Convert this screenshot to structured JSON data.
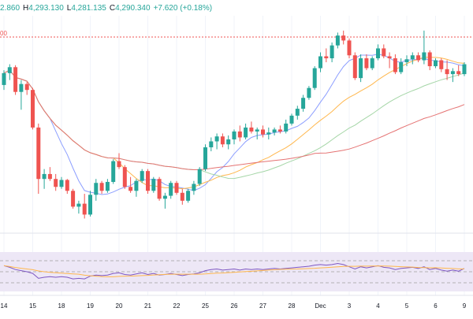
{
  "header": {
    "open_label": "",
    "open_value": "2.860",
    "high_label": "H",
    "high_value": "4,293.130",
    "low_label": "L",
    "low_value": "4,281.135",
    "close_label": "C",
    "close_value": "4,290.340",
    "change": "+7.620 (+0.18%)",
    "color": "#26a69a"
  },
  "ref_line_label": "00",
  "colors": {
    "up": "#26a69a",
    "down": "#ef5350",
    "ma_blue": "#8c9eff",
    "ma_orange": "#ffb74d",
    "ma_green": "#a5d6a7",
    "ma_red": "#e57373",
    "rsi_line": "#7e57c2",
    "rsi_signal": "#ffb74d",
    "rsi_band": "#ede7f6",
    "ref_line": "#ef5350",
    "axis_text": "#131722"
  },
  "chart_data": {
    "type": "candlestick",
    "x_tick_labels": [
      "14",
      "15",
      "18",
      "19",
      "20",
      "21",
      "22",
      "25",
      "26",
      "27",
      "28",
      "Dec",
      "3",
      "4",
      "5",
      "6",
      "9"
    ],
    "candles": [
      [
        4235,
        4250,
        4230,
        4247
      ],
      [
        4247,
        4256,
        4240,
        4253
      ],
      [
        4253,
        4255,
        4225,
        4228
      ],
      [
        4228,
        4240,
        4210,
        4236
      ],
      [
        4236,
        4238,
        4225,
        4230
      ],
      [
        4230,
        4232,
        4190,
        4192
      ],
      [
        4192,
        4196,
        4125,
        4140
      ],
      [
        4140,
        4150,
        4130,
        4145
      ],
      [
        4145,
        4152,
        4138,
        4140
      ],
      [
        4140,
        4145,
        4128,
        4132
      ],
      [
        4132,
        4142,
        4130,
        4139
      ],
      [
        4139,
        4140,
        4125,
        4128
      ],
      [
        4128,
        4130,
        4110,
        4112
      ],
      [
        4112,
        4118,
        4105,
        4115
      ],
      [
        4115,
        4125,
        4100,
        4104
      ],
      [
        4104,
        4128,
        4102,
        4124
      ],
      [
        4124,
        4140,
        4118,
        4136
      ],
      [
        4136,
        4138,
        4125,
        4128
      ],
      [
        4128,
        4140,
        4126,
        4137
      ],
      [
        4137,
        4160,
        4135,
        4158
      ],
      [
        4158,
        4166,
        4150,
        4152
      ],
      [
        4152,
        4154,
        4130,
        4132
      ],
      [
        4132,
        4142,
        4126,
        4128
      ],
      [
        4128,
        4140,
        4122,
        4138
      ],
      [
        4138,
        4150,
        4136,
        4148
      ],
      [
        4148,
        4150,
        4125,
        4128
      ],
      [
        4128,
        4142,
        4126,
        4140
      ],
      [
        4140,
        4142,
        4118,
        4120
      ],
      [
        4120,
        4126,
        4110,
        4123
      ],
      [
        4123,
        4138,
        4120,
        4136
      ],
      [
        4136,
        4138,
        4124,
        4126
      ],
      [
        4126,
        4130,
        4114,
        4118
      ],
      [
        4118,
        4130,
        4116,
        4128
      ],
      [
        4128,
        4138,
        4124,
        4135
      ],
      [
        4135,
        4152,
        4133,
        4150
      ],
      [
        4150,
        4175,
        4148,
        4172
      ],
      [
        4172,
        4182,
        4168,
        4178
      ],
      [
        4178,
        4186,
        4170,
        4183
      ],
      [
        4183,
        4186,
        4172,
        4175
      ],
      [
        4175,
        4184,
        4170,
        4180
      ],
      [
        4180,
        4190,
        4175,
        4188
      ],
      [
        4188,
        4194,
        4178,
        4182
      ],
      [
        4182,
        4196,
        4180,
        4192
      ],
      [
        4192,
        4198,
        4186,
        4188
      ],
      [
        4188,
        4192,
        4180,
        4190
      ],
      [
        4190,
        4194,
        4182,
        4185
      ],
      [
        4185,
        4192,
        4180,
        4187
      ],
      [
        4187,
        4192,
        4184,
        4190
      ],
      [
        4190,
        4194,
        4186,
        4188
      ],
      [
        4188,
        4200,
        4186,
        4196
      ],
      [
        4196,
        4206,
        4194,
        4204
      ],
      [
        4204,
        4214,
        4200,
        4211
      ],
      [
        4211,
        4225,
        4208,
        4222
      ],
      [
        4222,
        4234,
        4220,
        4232
      ],
      [
        4232,
        4254,
        4230,
        4252
      ],
      [
        4252,
        4268,
        4248,
        4264
      ],
      [
        4264,
        4272,
        4258,
        4262
      ],
      [
        4262,
        4278,
        4258,
        4275
      ],
      [
        4275,
        4288,
        4272,
        4285
      ],
      [
        4285,
        4290,
        4276,
        4280
      ],
      [
        4280,
        4282,
        4262,
        4265
      ],
      [
        4265,
        4268,
        4240,
        4242
      ],
      [
        4242,
        4266,
        4238,
        4262
      ],
      [
        4262,
        4266,
        4250,
        4252
      ],
      [
        4252,
        4264,
        4250,
        4262
      ],
      [
        4262,
        4276,
        4260,
        4272
      ],
      [
        4272,
        4276,
        4262,
        4264
      ],
      [
        4264,
        4268,
        4252,
        4262
      ],
      [
        4262,
        4266,
        4246,
        4248
      ],
      [
        4248,
        4262,
        4246,
        4258
      ],
      [
        4258,
        4265,
        4254,
        4261
      ],
      [
        4261,
        4268,
        4256,
        4265
      ],
      [
        4265,
        4268,
        4258,
        4260
      ],
      [
        4260,
        4290,
        4256,
        4268
      ],
      [
        4268,
        4270,
        4250,
        4254
      ],
      [
        4254,
        4262,
        4252,
        4260
      ],
      [
        4260,
        4262,
        4248,
        4251
      ],
      [
        4251,
        4260,
        4240,
        4246
      ],
      [
        4246,
        4252,
        4238,
        4249
      ],
      [
        4249,
        4255,
        4244,
        4246
      ],
      [
        4246,
        4258,
        4244,
        4256
      ]
    ],
    "rsi": [
      61,
      58,
      54,
      52,
      50,
      47,
      38,
      40,
      41,
      40,
      41,
      40,
      37,
      38,
      37,
      42,
      44,
      43,
      44,
      47,
      48,
      45,
      44,
      46,
      48,
      45,
      47,
      44,
      45,
      47,
      45,
      43,
      45,
      46,
      48,
      52,
      54,
      55,
      53,
      54,
      55,
      53,
      55,
      54,
      55,
      54,
      55,
      56,
      55,
      56,
      57,
      58,
      59,
      60,
      62,
      63,
      62,
      63,
      65,
      63,
      59,
      55,
      59,
      57,
      59,
      61,
      58,
      57,
      54,
      56,
      57,
      58,
      56,
      59,
      54,
      56,
      53,
      51,
      53,
      51,
      56
    ],
    "rsi_levels": [
      70,
      50,
      30
    ]
  }
}
